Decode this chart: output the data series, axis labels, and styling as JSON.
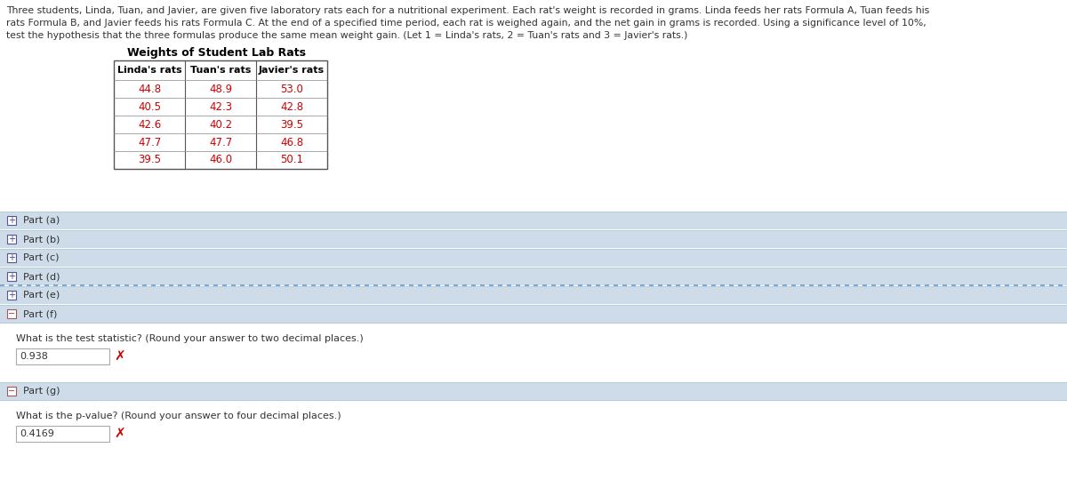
{
  "title_line1": "Three students, Linda, Tuan, and Javier, are given five laboratory rats each for a nutritional experiment. Each rat's weight is recorded in grams. Linda feeds her rats Formula A, Tuan feeds his",
  "title_line2": "rats Formula B, and Javier feeds his rats Formula C. At the end of a specified time period, each rat is weighed again, and the net gain in grams is recorded. Using a significance level of 10%,",
  "title_line3": "test the hypothesis that the three formulas produce the same mean weight gain. (Let 1 = Linda's rats, 2 = Tuan's rats and 3 = Javier's rats.)",
  "table_title": "Weights of Student Lab Rats",
  "col_headers": [
    "Linda's rats",
    "Tuan's rats",
    "Javier's rats"
  ],
  "col1": [
    "44.8",
    "40.5",
    "42.6",
    "47.7",
    "39.5"
  ],
  "col2": [
    "48.9",
    "42.3",
    "40.2",
    "47.7",
    "46.0"
  ],
  "col3": [
    "53.0",
    "42.8",
    "39.5",
    "46.8",
    "50.1"
  ],
  "parts_collapsed": [
    {
      "label": "Part (a)",
      "symbol": "+"
    },
    {
      "label": "Part (b)",
      "symbol": "+"
    },
    {
      "label": "Part (c)",
      "symbol": "+"
    },
    {
      "label": "Part (d)",
      "symbol": "+",
      "dotted_bottom": true
    },
    {
      "label": "Part (e)",
      "symbol": "+"
    },
    {
      "label": "Part (f)",
      "symbol": "−"
    }
  ],
  "part_f_question": "What is the test statistic? (Round your answer to two decimal places.)",
  "part_f_answer": "0.938",
  "part_g_label": "Part (g)",
  "part_g_symbol": "−",
  "part_g_question": "What is the p-value? (Round your answer to four decimal places.)",
  "part_g_answer": "0.4169",
  "bg_color": "#ffffff",
  "section_bg": "#cddce8",
  "section_border": "#b8cdd9",
  "data_color": "#cc0000",
  "header_color": "#333333",
  "text_color": "#333333",
  "input_border": "#aaaaaa",
  "x_color": "#cc0000",
  "dotted_color": "#6699cc"
}
